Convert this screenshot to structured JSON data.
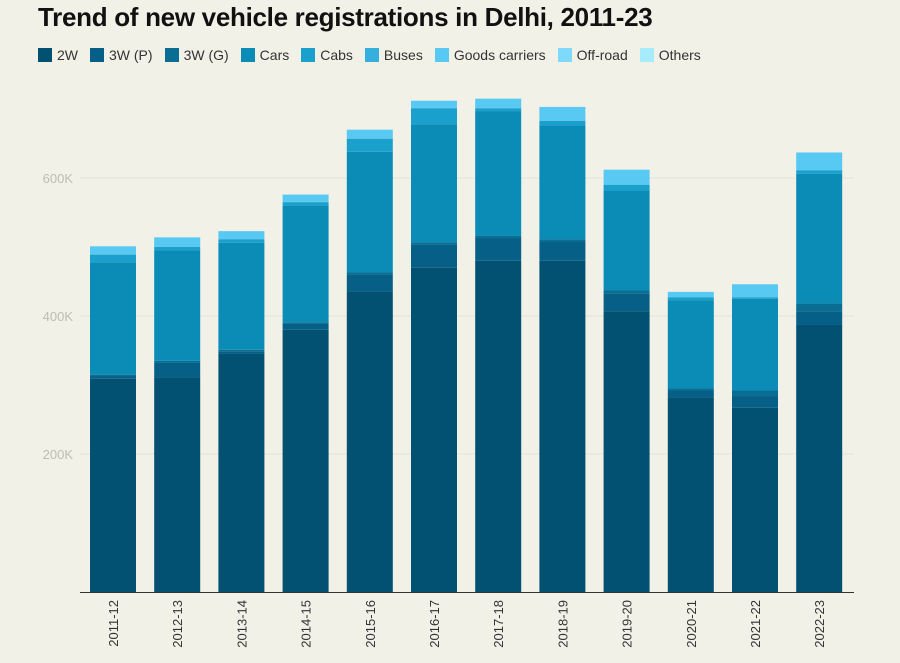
{
  "chart_data": {
    "type": "bar",
    "stacked": true,
    "title": "Trend of new vehicle registrations in Delhi, 2011-23",
    "xlabel": "",
    "ylabel": "",
    "ylim": [
      0,
      720000
    ],
    "yticks": [
      200000,
      400000,
      600000
    ],
    "ytick_labels": [
      "200K",
      "400K",
      "600K"
    ],
    "categories": [
      "2011-12",
      "2012-13",
      "2013-14",
      "2014-15",
      "2015-16",
      "2016-17",
      "2017-18",
      "2018-19",
      "2019-20",
      "2020-21",
      "2021-22",
      "2022-23"
    ],
    "series": [
      {
        "name": "2W",
        "color": "#025072",
        "values": [
          309000,
          311000,
          345000,
          380000,
          436000,
          470000,
          480000,
          480000,
          407000,
          282000,
          267000,
          387000
        ]
      },
      {
        "name": "3W (P)",
        "color": "#065f86",
        "values": [
          4000,
          21000,
          4000,
          9000,
          24000,
          33000,
          33000,
          28000,
          26000,
          10000,
          17000,
          20000
        ]
      },
      {
        "name": "3W (G)",
        "color": "#0a6d93",
        "values": [
          2000,
          3000,
          2000,
          2000,
          3000,
          4000,
          3000,
          3000,
          4000,
          3000,
          8000,
          11000
        ]
      },
      {
        "name": "Cars",
        "color": "#0b8cb7",
        "values": [
          163000,
          160000,
          155000,
          169000,
          175000,
          171000,
          181000,
          165000,
          145000,
          128000,
          133000,
          188000
        ]
      },
      {
        "name": "Cabs",
        "color": "#19a0cc",
        "values": [
          11000,
          5000,
          5000,
          5000,
          19000,
          23000,
          4000,
          7000,
          8000,
          4000,
          2000,
          5000
        ]
      },
      {
        "name": "Buses",
        "color": "#35afde",
        "values": [
          500,
          500,
          500,
          500,
          500,
          500,
          500,
          500,
          500,
          500,
          500,
          500
        ]
      },
      {
        "name": "Goods carriers",
        "color": "#58c9f3",
        "values": [
          11500,
          13500,
          11500,
          10500,
          12500,
          10500,
          13500,
          19500,
          21500,
          7500,
          18500,
          25500
        ]
      },
      {
        "name": "Off-road",
        "color": "#7ed9fb",
        "values": [
          0,
          0,
          0,
          0,
          0,
          0,
          0,
          0,
          0,
          0,
          0,
          0
        ]
      },
      {
        "name": "Others",
        "color": "#a6ecfb",
        "values": [
          0,
          0,
          0,
          0,
          0,
          0,
          0,
          0,
          0,
          0,
          0,
          0
        ]
      }
    ],
    "grid": true,
    "legend_position": "top-left"
  }
}
